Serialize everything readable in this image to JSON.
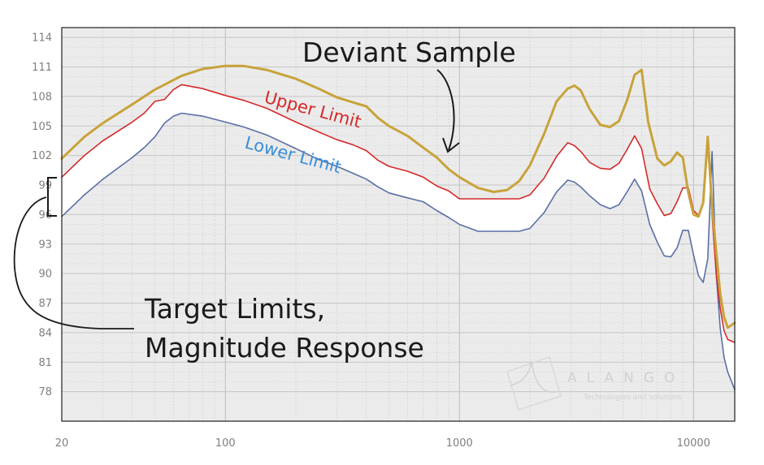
{
  "chart_data": {
    "type": "line",
    "x_scale": "log",
    "xlim": [
      20,
      15000
    ],
    "ylim": [
      75,
      115
    ],
    "grid": true,
    "xticks": [
      20,
      100,
      1000,
      10000
    ],
    "xtick_labels": [
      "20",
      "100",
      "1000",
      "10000"
    ],
    "yticks": [
      114,
      111,
      108,
      105,
      102,
      99,
      96,
      93,
      90,
      87,
      84,
      81,
      78
    ],
    "ytick_labels": [
      "114",
      "111",
      "108",
      "105",
      "102",
      "99",
      "96",
      "93",
      "90",
      "87",
      "84",
      "81",
      "78"
    ],
    "series": [
      {
        "name": "Deviant Sample",
        "color": "#c8a33a",
        "x": [
          20,
          25,
          30,
          40,
          50,
          65,
          80,
          100,
          120,
          150,
          200,
          250,
          300,
          350,
          400,
          450,
          500,
          600,
          700,
          800,
          900,
          1000,
          1200,
          1400,
          1600,
          1800,
          2000,
          2300,
          2600,
          2900,
          3100,
          3300,
          3600,
          4000,
          4400,
          4800,
          5200,
          5600,
          6000,
          6400,
          7000,
          7500,
          8000,
          8500,
          9000,
          9500,
          10000,
          10500,
          11000,
          11500,
          12000,
          12500,
          13000,
          13500,
          14000,
          15000
        ],
        "y": [
          101.7,
          103.9,
          105.3,
          107.2,
          108.7,
          110.1,
          110.8,
          111.1,
          111.1,
          110.7,
          109.8,
          108.8,
          107.9,
          107.4,
          107.0,
          105.8,
          105.0,
          104.0,
          102.8,
          101.8,
          100.6,
          99.8,
          98.7,
          98.3,
          98.5,
          99.4,
          101.0,
          104.2,
          107.5,
          108.8,
          109.1,
          108.6,
          106.7,
          105.1,
          104.9,
          105.5,
          107.6,
          110.2,
          110.7,
          105.4,
          101.7,
          101.0,
          101.4,
          102.3,
          101.8,
          98.2,
          96.0,
          95.8,
          97.2,
          103.9,
          96.8,
          92.2,
          88.0,
          85.6,
          84.5,
          85.0
        ]
      },
      {
        "name": "Upper Limit",
        "color": "#d42a2a",
        "x": [
          20,
          25,
          30,
          40,
          45,
          50,
          55,
          60,
          65,
          80,
          100,
          120,
          150,
          200,
          250,
          300,
          350,
          400,
          450,
          500,
          600,
          700,
          800,
          900,
          1000,
          1200,
          1500,
          1800,
          2000,
          2300,
          2600,
          2900,
          3100,
          3300,
          3600,
          4000,
          4400,
          4800,
          5200,
          5600,
          6000,
          6500,
          7000,
          7500,
          8000,
          8500,
          9000,
          9500,
          10000,
          10500,
          11000,
          11500,
          12000,
          12500,
          13000,
          13500,
          14000,
          15000
        ],
        "y": [
          99.8,
          102.0,
          103.5,
          105.4,
          106.3,
          107.5,
          107.7,
          108.7,
          109.2,
          108.8,
          108.1,
          107.6,
          106.8,
          105.4,
          104.4,
          103.6,
          103.1,
          102.5,
          101.5,
          100.9,
          100.4,
          99.8,
          98.9,
          98.4,
          97.6,
          97.6,
          97.6,
          97.6,
          98.0,
          99.7,
          101.9,
          103.3,
          103.0,
          102.4,
          101.3,
          100.7,
          100.6,
          101.2,
          102.6,
          104.0,
          102.7,
          98.6,
          97.1,
          95.9,
          96.1,
          97.3,
          98.7,
          98.7,
          96.4,
          95.9,
          97.2,
          103.2,
          96.0,
          90.0,
          86.5,
          84.2,
          83.3,
          83.0
        ]
      },
      {
        "name": "Lower Limit",
        "color": "#5a6fa8",
        "x": [
          20,
          25,
          30,
          40,
          45,
          50,
          55,
          60,
          65,
          80,
          100,
          120,
          150,
          200,
          250,
          300,
          350,
          400,
          450,
          500,
          600,
          700,
          800,
          900,
          1000,
          1200,
          1500,
          1800,
          2000,
          2300,
          2600,
          2900,
          3100,
          3300,
          3600,
          4000,
          4400,
          4800,
          5200,
          5600,
          6000,
          6500,
          7000,
          7500,
          8000,
          8500,
          9000,
          9500,
          10000,
          10500,
          11000,
          11500,
          12000,
          12500,
          13000,
          13500,
          14000,
          15000
        ],
        "y": [
          95.8,
          98.0,
          99.6,
          101.8,
          102.8,
          103.9,
          105.3,
          106.0,
          106.3,
          106.0,
          105.4,
          104.9,
          104.1,
          102.7,
          101.6,
          100.9,
          100.2,
          99.6,
          98.8,
          98.2,
          97.7,
          97.3,
          96.4,
          95.7,
          95.0,
          94.3,
          94.3,
          94.3,
          94.6,
          96.2,
          98.3,
          99.5,
          99.3,
          98.8,
          97.9,
          97.0,
          96.6,
          97.0,
          98.3,
          99.6,
          98.4,
          95.0,
          93.2,
          91.8,
          91.7,
          92.6,
          94.4,
          94.4,
          91.9,
          89.8,
          89.1,
          91.5,
          102.4,
          90.0,
          84.5,
          81.5,
          80.0,
          78.2
        ]
      }
    ],
    "annotations": {
      "deviant_sample": "Deviant Sample",
      "upper_limit": "Upper Limit",
      "lower_limit": "Lower Limit",
      "target_line1": "Target Limits,",
      "target_line2": "Magnitude Response"
    },
    "watermark": {
      "title": "ALANGO",
      "subtitle": "Technologies and solutions"
    }
  }
}
